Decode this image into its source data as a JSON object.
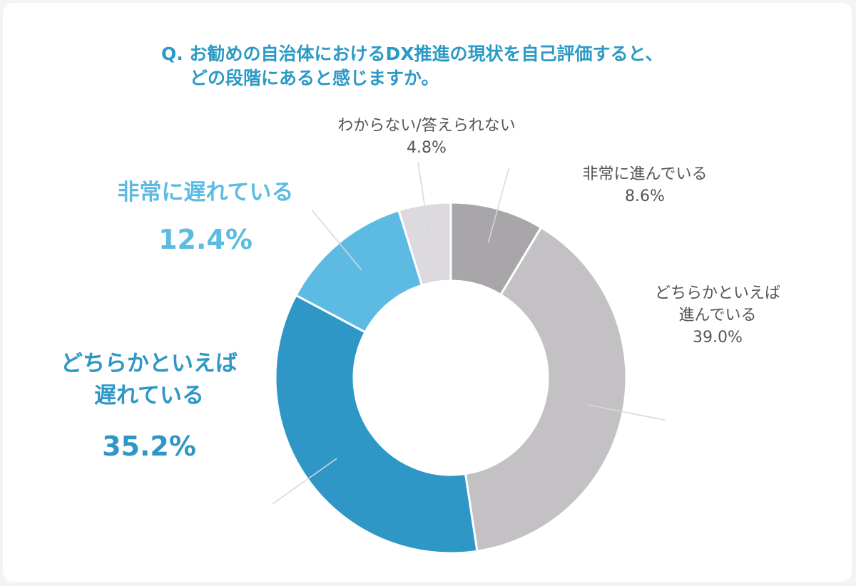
{
  "chart_data": {
    "type": "donut",
    "title": [
      "Q. お勧めの自治体におけるDX推進の現状を自己評価すると、",
      "どの段階にあると感じますか。"
    ],
    "categories": [
      "非常に進んでいる",
      "どちらかといえば\n進んでいる",
      "どちらかといえば\n遅れている",
      "非常に遅れている",
      "わからない/答えられない"
    ],
    "values": [
      8.6,
      39.0,
      35.2,
      12.4,
      4.8
    ],
    "value_labels": [
      "8.6%",
      "39.0%",
      "35.2%",
      "12.4%",
      "4.8%"
    ],
    "colors": [
      "#a9a6aa",
      "#c4c1c5",
      "#2e97c5",
      "#5dbbe3",
      "#dcdadf"
    ]
  }
}
